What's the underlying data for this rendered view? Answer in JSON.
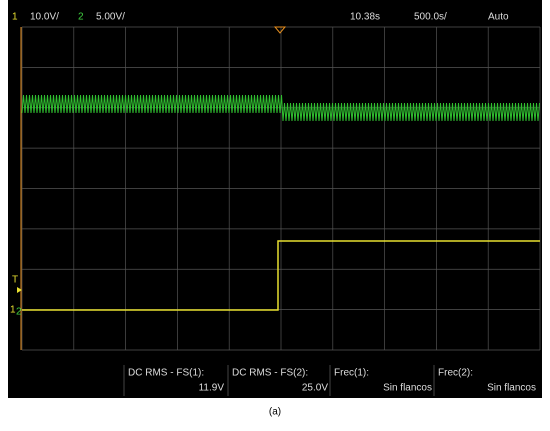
{
  "header": {
    "ch1_number": "1",
    "ch1_scale": "10.0V/",
    "ch2_number": "2",
    "ch2_scale": "5.00V/",
    "time_offset": "10.38s",
    "time_scale": "500.0s/",
    "trigger_mode": "Auto"
  },
  "markers": {
    "trigger": "T",
    "ch1": "1",
    "ch2": "2"
  },
  "measurements": [
    {
      "label": "DC RMS - FS(1):",
      "value": "11.9V"
    },
    {
      "label": "DC RMS - FS(2):",
      "value": "25.0V"
    },
    {
      "label": "Frec(1):",
      "value": "Sin flancos"
    },
    {
      "label": "Frec(2):",
      "value": "Sin flancos"
    }
  ],
  "caption": "(a)"
}
